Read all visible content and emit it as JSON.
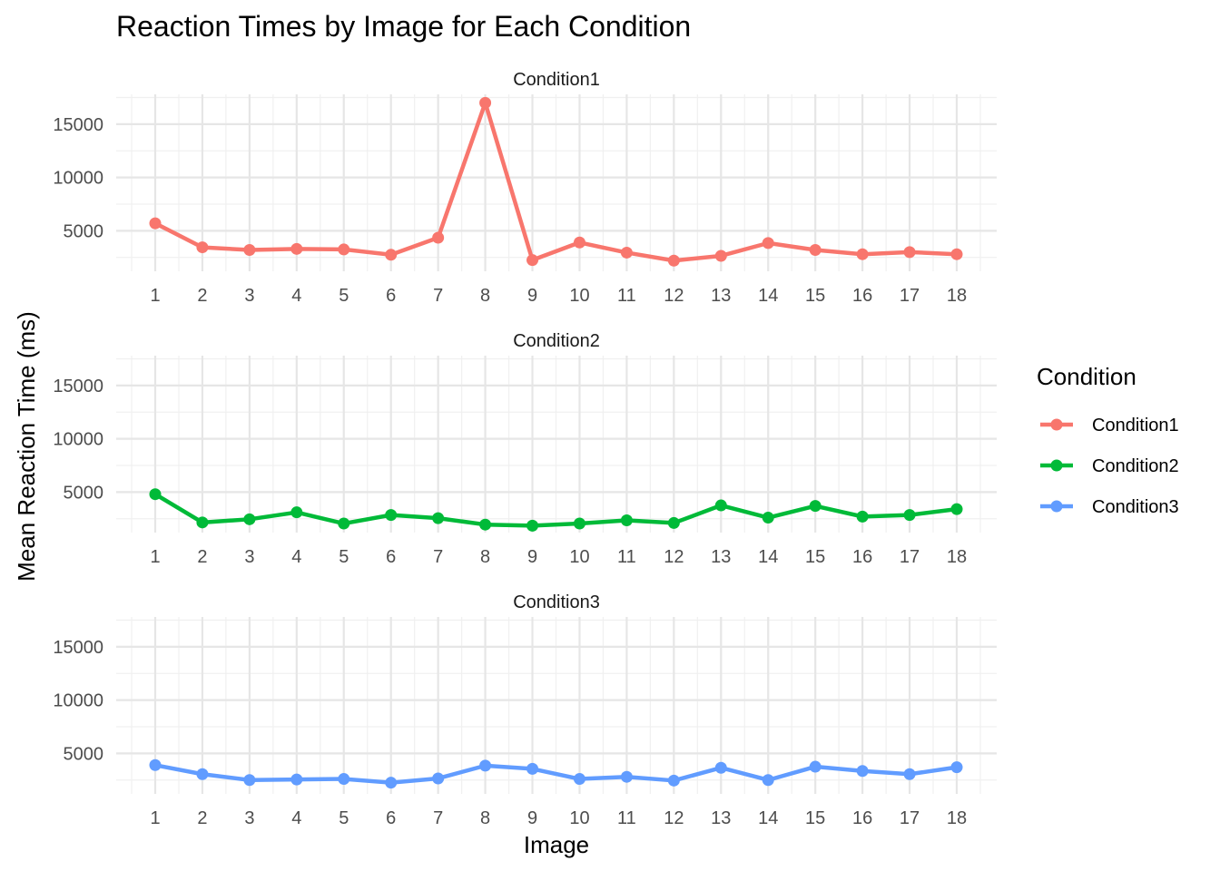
{
  "chart_data": {
    "type": "line",
    "title": "Reaction Times by Image for Each Condition",
    "xlabel": "Image",
    "ylabel": "Mean Reaction Time (ms)",
    "x": [
      1,
      2,
      3,
      4,
      5,
      6,
      7,
      8,
      9,
      10,
      11,
      12,
      13,
      14,
      15,
      16,
      17,
      18
    ],
    "y_ticks": [
      5000,
      10000,
      15000
    ],
    "ylim": [
      1200,
      17800
    ],
    "grid": true,
    "facet_by": "Condition",
    "legend": {
      "title": "Condition",
      "position": "right"
    },
    "series": [
      {
        "name": "Condition1",
        "color": "#F8766D",
        "values": [
          5700,
          3450,
          3200,
          3300,
          3250,
          2750,
          4350,
          17000,
          2250,
          3900,
          2950,
          2200,
          2650,
          3850,
          3200,
          2800,
          3000,
          2800
        ]
      },
      {
        "name": "Condition2",
        "color": "#00BA38",
        "values": [
          4800,
          2150,
          2450,
          3100,
          2050,
          2850,
          2550,
          1950,
          1850,
          2050,
          2350,
          2100,
          3750,
          2600,
          3700,
          2700,
          2850,
          3400
        ]
      },
      {
        "name": "Condition3",
        "color": "#619CFF",
        "values": [
          3900,
          3050,
          2500,
          2550,
          2600,
          2250,
          2650,
          3850,
          3550,
          2600,
          2800,
          2450,
          3650,
          2500,
          3750,
          3350,
          3050,
          3700
        ]
      }
    ]
  }
}
